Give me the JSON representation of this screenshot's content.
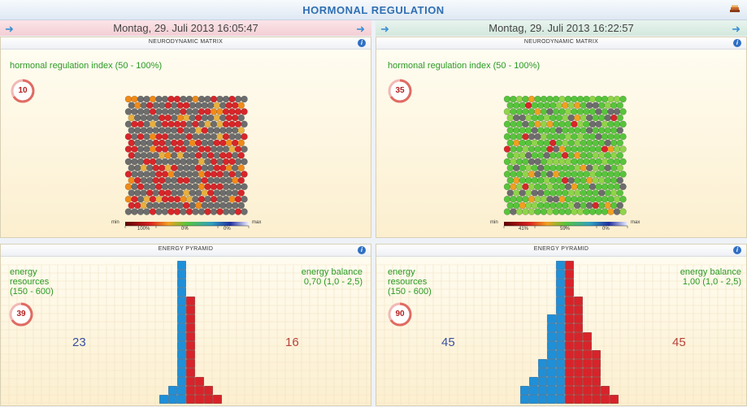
{
  "header": {
    "title": "HORMONAL REGULATION"
  },
  "left": {
    "date": "Montag, 29. Juli 2013 16:05:47",
    "matrix": {
      "panel_title": "NEURODYNAMIC MATRIX",
      "label": "hormonal regulation index (50 - 100%)",
      "index": "10",
      "scale": {
        "min": "min",
        "max": "max",
        "v1": "100%",
        "v2": "0%",
        "v3": "0%"
      }
    },
    "pyramid": {
      "panel_title": "ENERGY PYRAMID",
      "resources_l1": "energy",
      "resources_l2": "resources",
      "resources_l3": "(150 - 600)",
      "resources_value": "39",
      "balance_l1": "energy balance",
      "balance_l2": "0,70 (1,0 - 2,5)",
      "left_count": "23",
      "right_count": "16",
      "blue_cols": [
        1,
        2,
        16
      ],
      "red_cols": [
        12,
        3,
        2,
        1
      ]
    }
  },
  "right": {
    "date": "Montag, 29. Juli 2013 16:22:57",
    "matrix": {
      "panel_title": "NEURODYNAMIC MATRIX",
      "label": "hormonal regulation index (50 - 100%)",
      "index": "35",
      "scale": {
        "min": "min",
        "max": "max",
        "v1": "41%",
        "v2": "59%",
        "v3": "0%"
      }
    },
    "pyramid": {
      "panel_title": "ENERGY PYRAMID",
      "resources_l1": "energy",
      "resources_l2": "resources",
      "resources_l3": "(150 - 600)",
      "resources_value": "90",
      "balance_l1": "energy balance",
      "balance_l2": "1,00 (1,0 - 2,5)",
      "left_count": "45",
      "right_count": "45",
      "blue_cols": [
        2,
        3,
        5,
        10,
        16
      ],
      "red_cols": [
        16,
        12,
        8,
        6,
        2,
        1
      ]
    }
  },
  "colors": {
    "blue": "#1f8fd8",
    "red": "#d8232a",
    "gray": "#6e6e6e",
    "green": "#58c43c",
    "orange": "#f08a1a"
  }
}
